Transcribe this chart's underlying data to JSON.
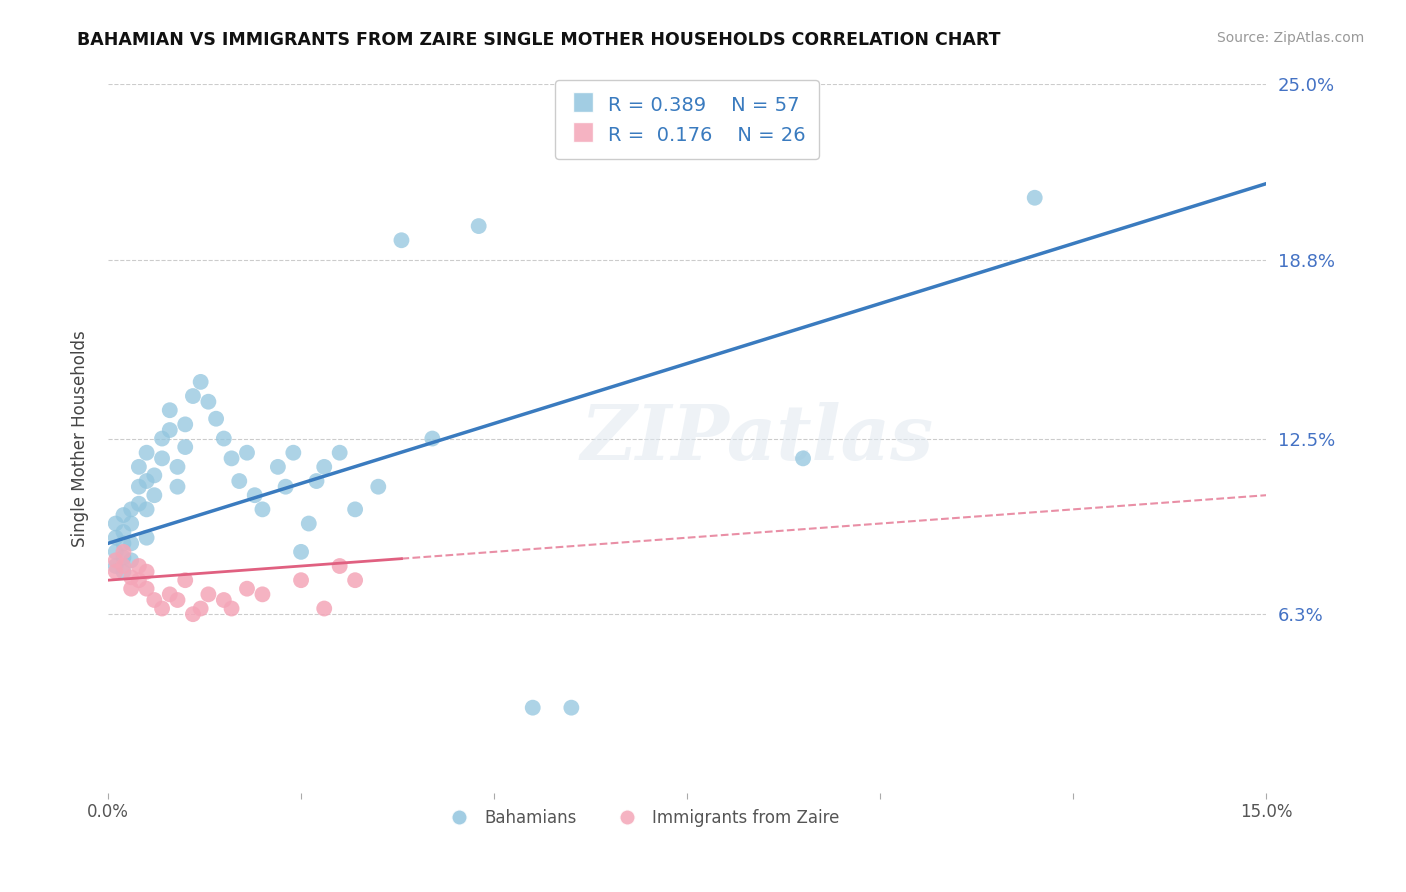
{
  "title": "BAHAMIAN VS IMMIGRANTS FROM ZAIRE SINGLE MOTHER HOUSEHOLDS CORRELATION CHART",
  "source": "Source: ZipAtlas.com",
  "ylabel": "Single Mother Households",
  "xlim": [
    0.0,
    0.15
  ],
  "ylim": [
    0.0,
    0.25
  ],
  "ytick_labels_right": [
    "6.3%",
    "12.5%",
    "18.8%",
    "25.0%"
  ],
  "ytick_vals_right": [
    0.063,
    0.125,
    0.188,
    0.25
  ],
  "blue_R": "0.389",
  "blue_N": "57",
  "pink_R": "0.176",
  "pink_N": "26",
  "blue_color": "#92c5de",
  "pink_color": "#f4a6b8",
  "blue_line_color": "#3a7bbf",
  "pink_line_color": "#e06080",
  "legend_label_blue": "Bahamians",
  "legend_label_pink": "Immigrants from Zaire",
  "watermark": "ZIPatlas",
  "blue_scatter_x": [
    0.001,
    0.001,
    0.001,
    0.001,
    0.002,
    0.002,
    0.002,
    0.002,
    0.002,
    0.003,
    0.003,
    0.003,
    0.003,
    0.004,
    0.004,
    0.004,
    0.005,
    0.005,
    0.005,
    0.005,
    0.006,
    0.006,
    0.007,
    0.007,
    0.008,
    0.008,
    0.009,
    0.009,
    0.01,
    0.01,
    0.011,
    0.012,
    0.013,
    0.014,
    0.015,
    0.016,
    0.017,
    0.018,
    0.019,
    0.02,
    0.022,
    0.023,
    0.024,
    0.025,
    0.026,
    0.027,
    0.028,
    0.03,
    0.032,
    0.035,
    0.038,
    0.042,
    0.048,
    0.055,
    0.06,
    0.09,
    0.12
  ],
  "blue_scatter_y": [
    0.085,
    0.09,
    0.095,
    0.08,
    0.088,
    0.092,
    0.098,
    0.083,
    0.078,
    0.095,
    0.1,
    0.088,
    0.082,
    0.102,
    0.108,
    0.115,
    0.12,
    0.11,
    0.1,
    0.09,
    0.105,
    0.112,
    0.118,
    0.125,
    0.128,
    0.135,
    0.108,
    0.115,
    0.13,
    0.122,
    0.14,
    0.145,
    0.138,
    0.132,
    0.125,
    0.118,
    0.11,
    0.12,
    0.105,
    0.1,
    0.115,
    0.108,
    0.12,
    0.085,
    0.095,
    0.11,
    0.115,
    0.12,
    0.1,
    0.108,
    0.195,
    0.125,
    0.2,
    0.03,
    0.03,
    0.118,
    0.21
  ],
  "pink_scatter_x": [
    0.001,
    0.001,
    0.002,
    0.002,
    0.003,
    0.003,
    0.004,
    0.004,
    0.005,
    0.005,
    0.006,
    0.007,
    0.008,
    0.009,
    0.01,
    0.011,
    0.012,
    0.013,
    0.015,
    0.016,
    0.018,
    0.02,
    0.025,
    0.028,
    0.03,
    0.032
  ],
  "pink_scatter_y": [
    0.082,
    0.078,
    0.085,
    0.08,
    0.076,
    0.072,
    0.075,
    0.08,
    0.078,
    0.072,
    0.068,
    0.065,
    0.07,
    0.068,
    0.075,
    0.063,
    0.065,
    0.07,
    0.068,
    0.065,
    0.072,
    0.07,
    0.075,
    0.065,
    0.08,
    0.075
  ]
}
